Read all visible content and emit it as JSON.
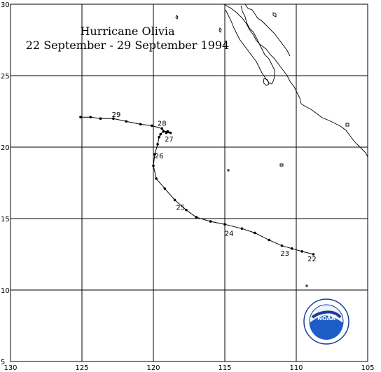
{
  "title": {
    "line1": "Hurricane Olivia",
    "line2": "22 September - 29 September 1994"
  },
  "axes": {
    "x_ticks": [
      130,
      125,
      120,
      115,
      110,
      105
    ],
    "y_ticks": [
      30,
      25,
      20,
      15,
      10,
      5
    ],
    "lon_range": [
      130,
      105
    ],
    "lat_range": [
      5,
      30
    ],
    "grid": true
  },
  "track": {
    "color": "#000000",
    "points": [
      [
        108.8,
        12.5
      ],
      [
        109.6,
        12.7
      ],
      [
        110.3,
        12.9
      ],
      [
        111.0,
        13.1
      ],
      [
        111.9,
        13.5
      ],
      [
        112.9,
        14.0
      ],
      [
        113.8,
        14.3
      ],
      [
        115.0,
        14.6
      ],
      [
        116.0,
        14.8
      ],
      [
        117.0,
        15.1
      ],
      [
        117.7,
        15.6
      ],
      [
        118.5,
        16.3
      ],
      [
        119.2,
        17.1
      ],
      [
        119.8,
        17.8
      ],
      [
        120.0,
        18.7
      ],
      [
        119.9,
        19.5
      ],
      [
        119.7,
        20.2
      ],
      [
        119.6,
        20.7
      ],
      [
        119.5,
        20.9
      ],
      [
        119.3,
        21.1
      ],
      [
        119.0,
        21.1
      ],
      [
        118.8,
        21.0
      ],
      [
        119.1,
        21.0
      ],
      [
        119.4,
        21.3
      ],
      [
        120.1,
        21.5
      ],
      [
        120.9,
        21.6
      ],
      [
        121.9,
        21.8
      ],
      [
        122.8,
        22.0
      ],
      [
        123.7,
        22.0
      ],
      [
        124.4,
        22.1
      ],
      [
        125.1,
        22.1
      ]
    ]
  },
  "day_labels": [
    {
      "text": "22",
      "lon": 108.9,
      "lat": 12.2
    },
    {
      "text": "23",
      "lon": 110.8,
      "lat": 12.6
    },
    {
      "text": "24",
      "lon": 114.7,
      "lat": 14.0
    },
    {
      "text": "25",
      "lon": 118.1,
      "lat": 15.8
    },
    {
      "text": "26",
      "lon": 119.6,
      "lat": 19.4
    },
    {
      "text": "27",
      "lon": 118.9,
      "lat": 20.6
    },
    {
      "text": "28",
      "lon": 119.4,
      "lat": 21.7
    },
    {
      "text": "29",
      "lon": 122.6,
      "lat": 22.3
    }
  ],
  "logo": {
    "text": "NOAA",
    "ring_text": "NATIONAL OCEANIC AND ATMOSPHERIC ADMINISTRATION",
    "colors": {
      "ocean": "#1e5cc8",
      "sky": "#eef4ff",
      "ring": "#1b3f94"
    }
  },
  "coastline_color": "#000000"
}
